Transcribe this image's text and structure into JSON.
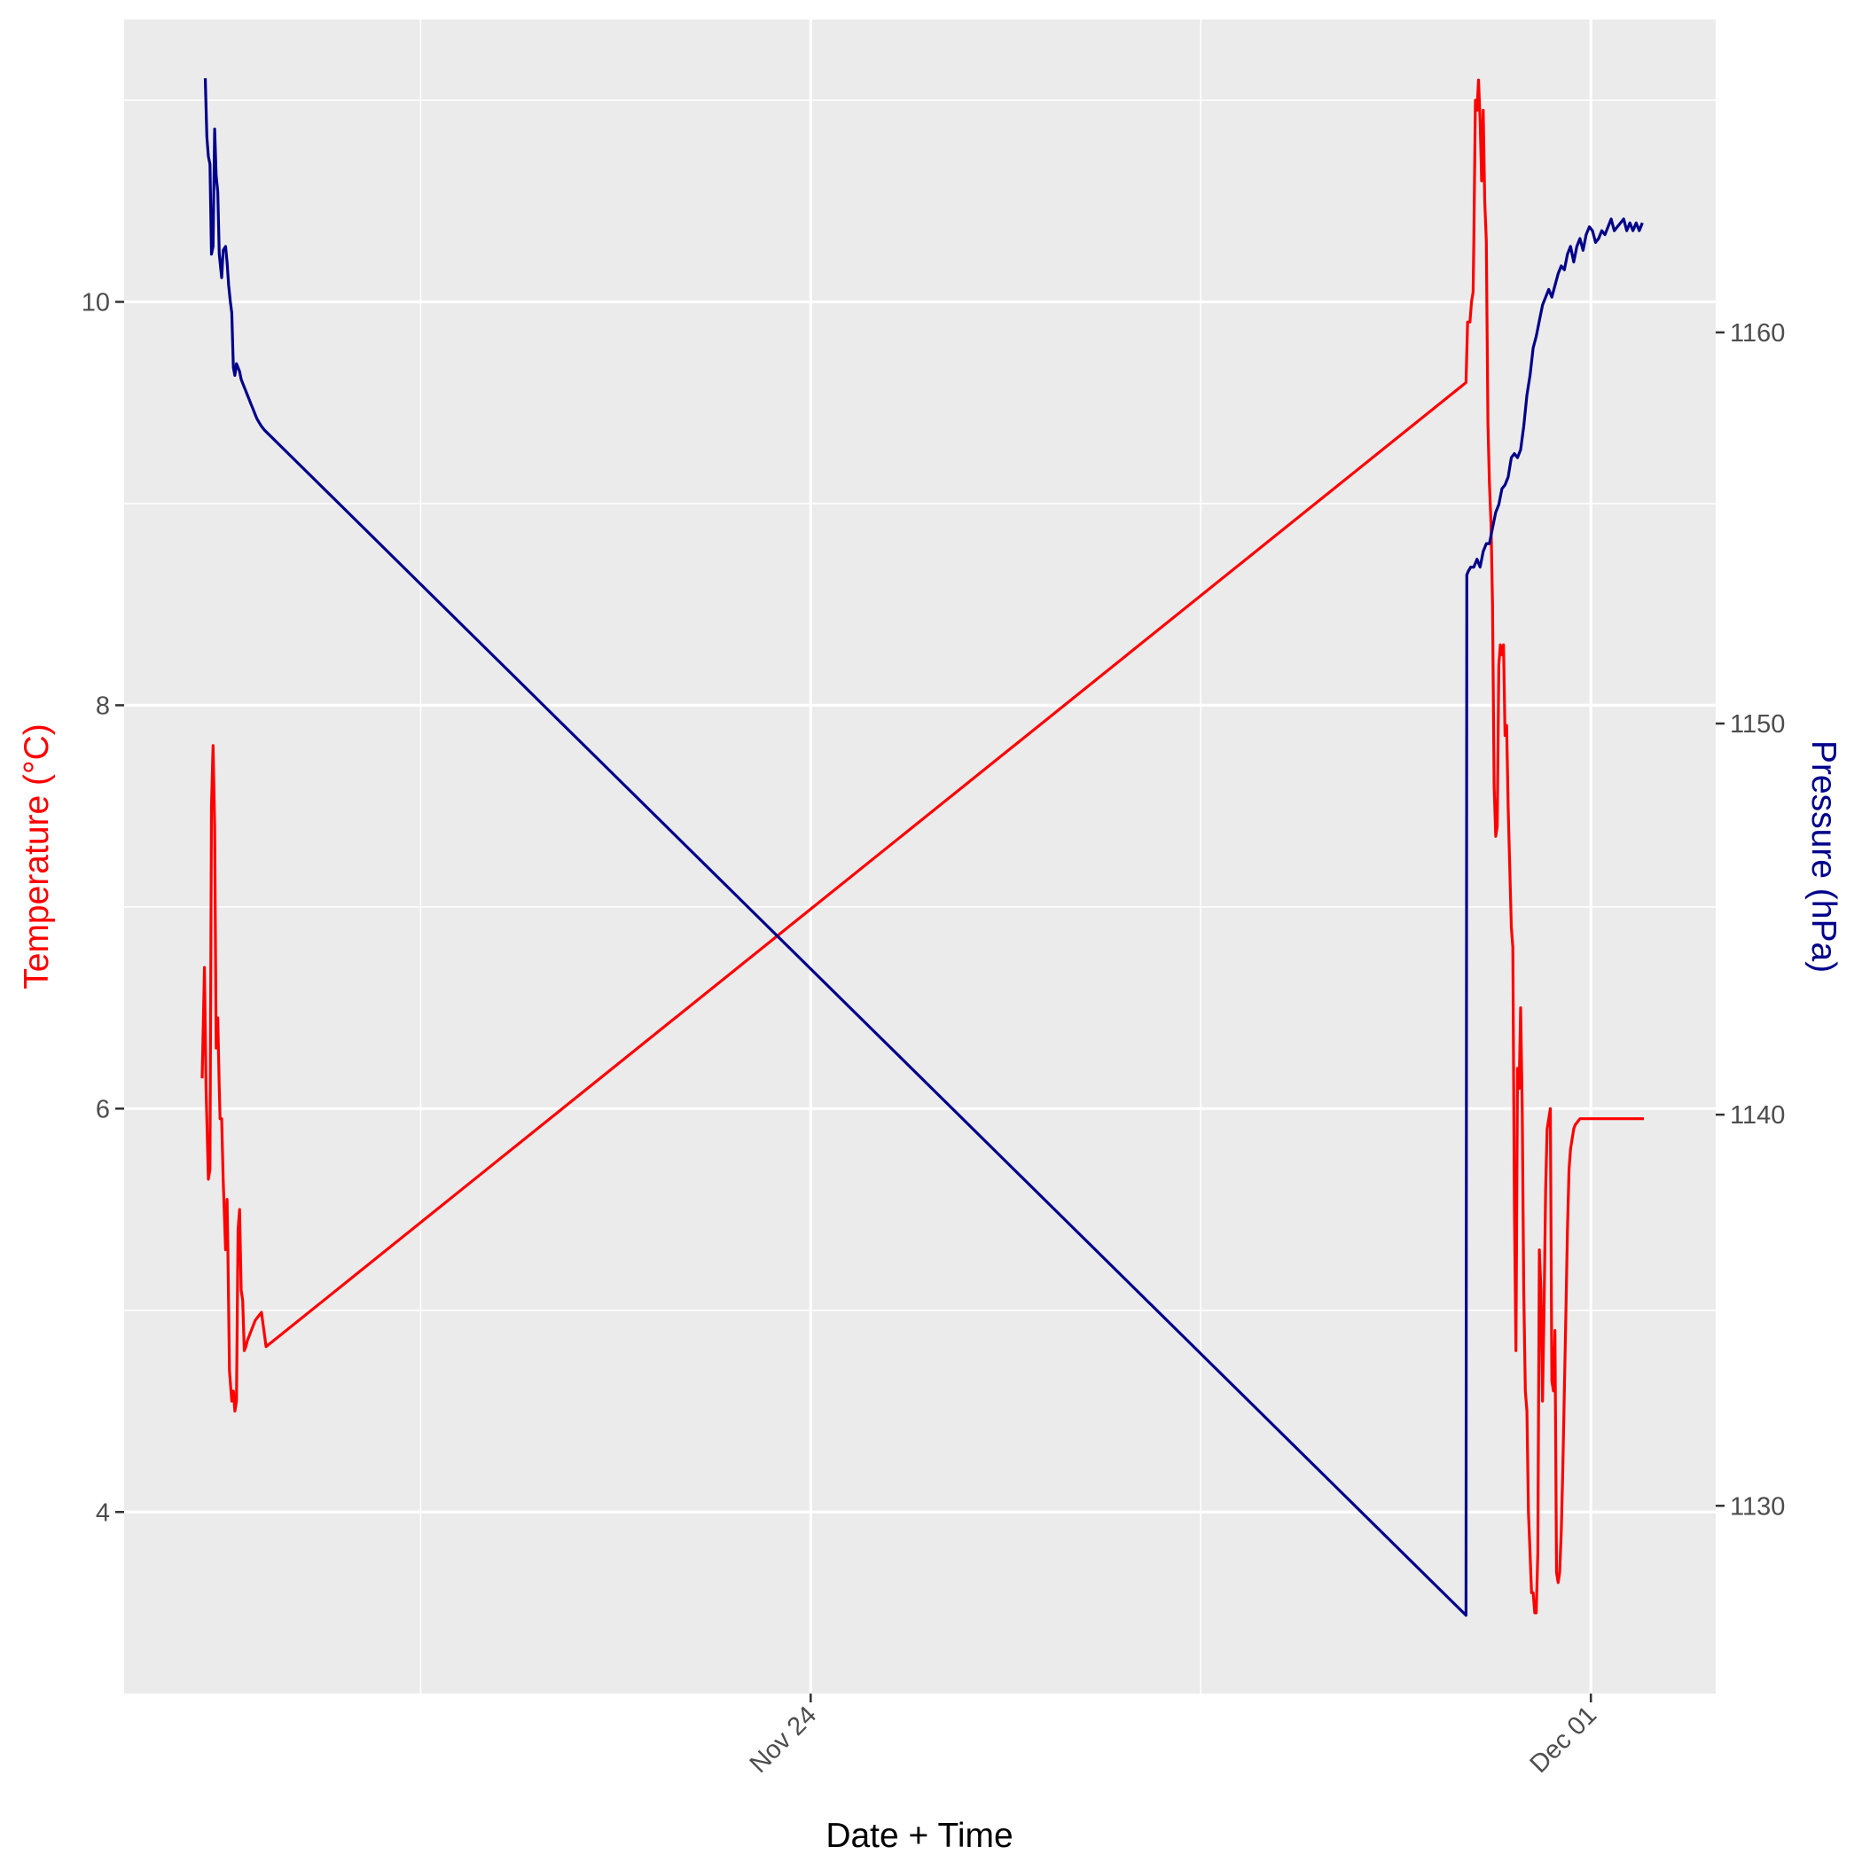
{
  "chart_data": {
    "type": "line",
    "title": "",
    "xlabel": "Date + Time",
    "ylabel_left": "Temperature (°C)",
    "ylabel_right": "Pressure (hPa)",
    "colors": {
      "temperature": "#ff0000",
      "pressure": "#00008b",
      "panel": "#ebebeb",
      "grid": "#ffffff",
      "tick_text": "#4d4d4d",
      "xlabel_text": "#000000"
    },
    "x_axis": {
      "unit": "days since Nov 24",
      "lim": [
        -8.8,
        11.6
      ],
      "major_ticks": [
        {
          "value": 0,
          "label": "Nov 24"
        },
        {
          "value": 10,
          "label": "Dec 01"
        }
      ],
      "minor_ticks": [
        -5,
        5
      ]
    },
    "y_left": {
      "lim": [
        3.1,
        11.4
      ],
      "ticks": [
        4,
        6,
        8,
        10
      ],
      "minor_ticks": [
        5,
        7,
        9,
        11
      ]
    },
    "y_right": {
      "lim": [
        1125.2,
        1168.0
      ],
      "ticks": [
        1130,
        1140,
        1150,
        1160
      ],
      "minor_ticks": [
        1135,
        1145,
        1155,
        1165
      ]
    },
    "series": [
      {
        "name": "Temperature",
        "axis": "left",
        "x": [
          -7.8,
          -7.77,
          -7.75,
          -7.72,
          -7.7,
          -7.68,
          -7.66,
          -7.64,
          -7.62,
          -7.6,
          -7.58,
          -7.57,
          -7.55,
          -7.53,
          -7.5,
          -7.48,
          -7.47,
          -7.45,
          -7.42,
          -7.4,
          -7.38,
          -7.36,
          -7.34,
          -7.32,
          -7.3,
          -7.28,
          -7.26,
          -7.24,
          -7.22,
          -7.2,
          -7.18,
          -7.16,
          -7.14,
          -7.12,
          -7.1,
          -7.08,
          -7.06,
          -7.04,
          -6.98,
          8.4,
          8.42,
          8.45,
          8.47,
          8.49,
          8.5,
          8.52,
          8.54,
          8.56,
          8.58,
          8.6,
          8.62,
          8.64,
          8.66,
          8.68,
          8.7,
          8.72,
          8.74,
          8.76,
          8.78,
          8.8,
          8.82,
          8.84,
          8.86,
          8.88,
          8.9,
          8.92,
          8.94,
          8.96,
          8.98,
          9.0,
          9.02,
          9.04,
          9.06,
          9.08,
          9.1,
          9.12,
          9.14,
          9.16,
          9.18,
          9.2,
          9.22,
          9.24,
          9.26,
          9.28,
          9.3,
          9.32,
          9.34,
          9.36,
          9.38,
          9.4,
          9.42,
          9.44,
          9.46,
          9.48,
          9.5,
          9.52,
          9.54,
          9.56,
          9.58,
          9.6,
          9.62,
          9.64,
          9.66,
          9.68,
          9.7,
          9.72,
          9.74,
          9.76,
          9.78,
          9.8,
          9.82,
          9.84,
          9.86,
          9.88,
          9.9,
          9.92,
          9.94,
          9.96,
          9.98,
          10.0,
          10.02,
          10.04,
          10.06,
          10.08,
          10.1,
          10.12,
          10.14,
          10.16,
          10.18,
          10.2,
          10.22,
          10.24,
          10.26,
          10.28,
          10.3,
          10.32,
          10.34,
          10.36,
          10.38,
          10.4,
          10.42,
          10.44,
          10.46,
          10.48,
          10.5,
          10.52,
          10.54,
          10.56,
          10.58,
          10.6,
          10.62,
          10.64,
          10.66,
          10.68
        ],
        "y": [
          6.15,
          6.7,
          6.1,
          5.65,
          5.7,
          7.5,
          7.8,
          7.4,
          6.3,
          6.45,
          6.1,
          5.95,
          5.95,
          5.65,
          5.3,
          5.55,
          5.3,
          4.7,
          4.55,
          4.6,
          4.5,
          4.55,
          5.4,
          5.5,
          5.1,
          5.05,
          4.8,
          4.82,
          4.85,
          4.87,
          4.89,
          4.91,
          4.93,
          4.95,
          4.96,
          4.97,
          4.98,
          4.99,
          4.82,
          9.6,
          9.9,
          9.9,
          10.0,
          10.05,
          10.3,
          11.0,
          10.95,
          11.1,
          10.9,
          10.6,
          10.95,
          10.5,
          10.3,
          9.4,
          9.1,
          8.9,
          8.5,
          7.6,
          7.35,
          7.4,
          8.2,
          8.3,
          8.25,
          8.3,
          7.85,
          7.9,
          7.5,
          7.2,
          6.9,
          6.8,
          5.5,
          4.8,
          6.2,
          6.1,
          6.5,
          6.0,
          5.1,
          4.6,
          4.5,
          4.0,
          3.8,
          3.6,
          3.6,
          3.5,
          3.5,
          3.8,
          5.3,
          5.1,
          4.55,
          5.0,
          5.6,
          5.9,
          5.95,
          6.0,
          4.65,
          4.6,
          4.9,
          3.7,
          3.65,
          3.7,
          3.9,
          4.2,
          4.6,
          5.0,
          5.4,
          5.7,
          5.8,
          5.85,
          5.9,
          5.92,
          5.93,
          5.94,
          5.95,
          5.95,
          5.95,
          5.95,
          5.95,
          5.95,
          5.95,
          5.95,
          5.95,
          5.95,
          5.95,
          5.95,
          5.95,
          5.95,
          5.95,
          5.95,
          5.95,
          5.95,
          5.95,
          5.95,
          5.95,
          5.95,
          5.95,
          5.95,
          5.95,
          5.95,
          5.95,
          5.95,
          5.95,
          5.95,
          5.95,
          5.95,
          5.95,
          5.95,
          5.95,
          5.95,
          5.95,
          5.95,
          5.95,
          5.95,
          5.95,
          5.95
        ]
      },
      {
        "name": "Pressure",
        "axis": "right",
        "x": [
          -7.76,
          -7.74,
          -7.72,
          -7.7,
          -7.68,
          -7.66,
          -7.64,
          -7.62,
          -7.6,
          -7.58,
          -7.55,
          -7.53,
          -7.5,
          -7.48,
          -7.46,
          -7.44,
          -7.42,
          -7.4,
          -7.38,
          -7.36,
          -7.34,
          -7.32,
          -7.3,
          -7.28,
          -7.26,
          -7.24,
          -7.22,
          -7.2,
          -7.18,
          -7.16,
          -7.14,
          -7.12,
          -7.1,
          -7.07,
          -7.04,
          -7.0,
          8.4,
          8.41,
          8.43,
          8.46,
          8.5,
          8.54,
          8.58,
          8.62,
          8.66,
          8.7,
          8.74,
          8.78,
          8.82,
          8.86,
          8.9,
          8.94,
          8.98,
          9.02,
          9.06,
          9.1,
          9.14,
          9.18,
          9.22,
          9.26,
          9.3,
          9.34,
          9.38,
          9.42,
          9.46,
          9.5,
          9.54,
          9.58,
          9.62,
          9.66,
          9.7,
          9.74,
          9.78,
          9.82,
          9.86,
          9.9,
          9.94,
          9.98,
          10.02,
          10.06,
          10.1,
          10.14,
          10.18,
          10.22,
          10.26,
          10.3,
          10.34,
          10.38,
          10.42,
          10.46,
          10.5,
          10.54,
          10.58,
          10.62,
          10.66
        ],
        "y": [
          1166.5,
          1165.0,
          1164.5,
          1164.3,
          1162.0,
          1162.2,
          1165.2,
          1164.0,
          1163.6,
          1162.0,
          1161.4,
          1162.1,
          1162.2,
          1161.8,
          1161.2,
          1160.8,
          1160.5,
          1159.1,
          1158.9,
          1159.2,
          1159.1,
          1159.0,
          1158.8,
          1158.7,
          1158.6,
          1158.5,
          1158.4,
          1158.3,
          1158.2,
          1158.1,
          1158.0,
          1157.9,
          1157.8,
          1157.7,
          1157.6,
          1157.5,
          1127.2,
          1153.8,
          1153.9,
          1154.0,
          1154.0,
          1154.2,
          1154.0,
          1154.4,
          1154.6,
          1154.6,
          1155.0,
          1155.4,
          1155.6,
          1156.0,
          1156.1,
          1156.3,
          1156.8,
          1156.9,
          1156.8,
          1157.0,
          1157.6,
          1158.4,
          1158.9,
          1159.6,
          1159.9,
          1160.3,
          1160.7,
          1160.9,
          1161.1,
          1160.9,
          1161.2,
          1161.5,
          1161.7,
          1161.6,
          1162.0,
          1162.2,
          1161.8,
          1162.2,
          1162.4,
          1162.1,
          1162.5,
          1162.7,
          1162.6,
          1162.3,
          1162.4,
          1162.6,
          1162.5,
          1162.7,
          1162.9,
          1162.6,
          1162.7,
          1162.8,
          1162.9,
          1162.6,
          1162.8,
          1162.6,
          1162.8,
          1162.6,
          1162.8
        ]
      }
    ]
  }
}
